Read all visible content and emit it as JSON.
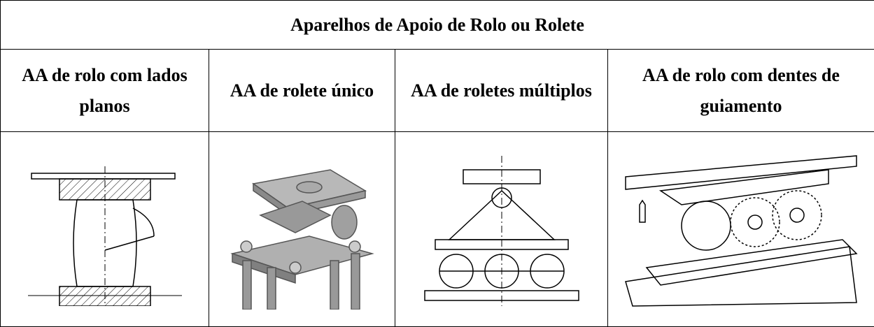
{
  "table": {
    "title": "Aparelhos de Apoio de Rolo ou Rolete",
    "headers": [
      "AA de rolo com lados planos",
      "AA de rolete único",
      "AA de roletes múltiplos",
      "AA de rolo com dentes de guiamento"
    ]
  }
}
